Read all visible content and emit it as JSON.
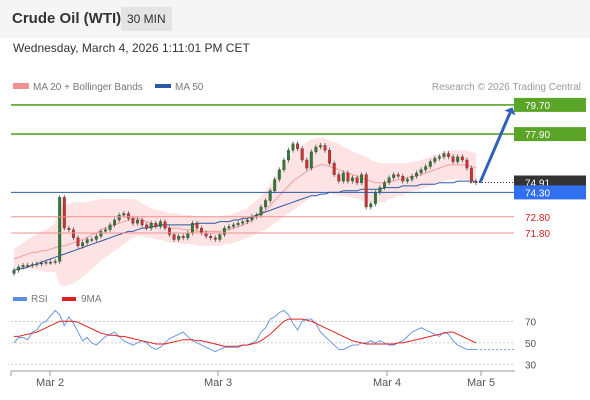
{
  "header": {
    "title": "Crude Oil (WTI)",
    "interval": "30 MIN",
    "datetime": "Wednesday, March 4, 2026 1:11:01 PM CET"
  },
  "legend": {
    "bollinger_label": "MA 20 + Bollinger Bands",
    "ma50_label": "MA 50",
    "credit": "Research © 2026 Trading Central"
  },
  "colors": {
    "resistance": "#5aa428",
    "support": "#f09090",
    "support_text": "#cc2222",
    "ma50": "#2b59a6",
    "pivot_box": "#2f6ff0",
    "current_box": "#333333",
    "bollinger_fill": "#fde3e3",
    "candle_up": "#2e7d32",
    "candle_down": "#d32f2f",
    "rsi": "#5b8fe0",
    "rsi_ma": "#e02020",
    "arrow": "#2d62b8"
  },
  "chart_data": [
    {
      "type": "candlestick",
      "title": "Crude Oil (WTI)",
      "interval": "30 MIN",
      "x_ticks": [
        "Mar 2",
        "Mar 3",
        "Mar 4",
        "Mar 5"
      ],
      "ylim": [
        68.9,
        80.0
      ],
      "levels": [
        {
          "value": 79.7,
          "label": "79.70",
          "role": "resistance"
        },
        {
          "value": 77.9,
          "label": "77.90",
          "role": "resistance"
        },
        {
          "value": 74.91,
          "label": "74.91",
          "role": "current"
        },
        {
          "value": 74.3,
          "label": "74.30",
          "role": "pivot"
        },
        {
          "value": 72.8,
          "label": "72.80",
          "role": "support"
        },
        {
          "value": 71.8,
          "label": "71.80",
          "role": "support"
        }
      ],
      "close": [
        69.5,
        69.7,
        69.8,
        69.8,
        69.85,
        69.9,
        69.95,
        70.0,
        70.0,
        70.05,
        74.0,
        72.1,
        72.0,
        71.5,
        71.0,
        71.2,
        71.4,
        71.4,
        71.6,
        71.9,
        72.0,
        72.3,
        72.6,
        72.9,
        73.0,
        72.7,
        72.4,
        72.6,
        72.3,
        72.1,
        72.4,
        72.2,
        72.5,
        72.1,
        71.7,
        71.4,
        71.6,
        71.5,
        71.8,
        72.4,
        72.1,
        71.8,
        71.6,
        71.5,
        71.4,
        71.7,
        72.1,
        72.2,
        72.3,
        72.4,
        72.5,
        72.6,
        72.8,
        72.9,
        73.4,
        73.8,
        74.4,
        75.1,
        75.7,
        76.3,
        76.9,
        77.3,
        77.0,
        76.3,
        75.8,
        76.8,
        77.1,
        77.2,
        76.9,
        76.1,
        75.4,
        75.0,
        75.5,
        75.0,
        75.2,
        74.9,
        75.4,
        73.4,
        73.6,
        74.3,
        74.6,
        74.9,
        75.2,
        75.4,
        75.3,
        75.0,
        75.1,
        75.3,
        75.5,
        75.7,
        75.9,
        76.2,
        76.4,
        76.5,
        76.7,
        76.5,
        76.2,
        76.5,
        76.3,
        75.8,
        75.0,
        74.9
      ],
      "ma20": [
        70.2,
        70.3,
        70.4,
        70.5,
        70.6,
        70.6,
        70.7,
        70.7,
        70.8,
        70.9,
        71.0,
        71.0,
        71.1,
        71.2,
        71.3,
        71.4,
        71.5,
        71.7,
        71.8,
        72.0,
        72.1,
        72.2,
        72.3,
        72.4,
        72.5,
        72.6,
        72.7,
        72.7,
        72.6,
        72.5,
        72.4,
        72.3,
        72.3,
        72.2,
        72.1,
        72.1,
        72.1,
        72.0,
        72.0,
        72.0,
        71.9,
        71.9,
        71.9,
        71.9,
        71.9,
        71.9,
        72.0,
        72.0,
        72.1,
        72.2,
        72.3,
        72.4,
        72.6,
        72.8,
        73.0,
        73.2,
        73.5,
        73.8,
        74.1,
        74.4,
        74.7,
        75.0,
        75.2,
        75.4,
        75.6,
        75.8,
        75.9,
        76.0,
        76.0,
        75.9,
        75.8,
        75.7,
        75.6,
        75.5,
        75.4,
        75.3,
        75.2,
        75.1,
        75.0,
        74.9,
        74.9,
        74.9,
        75.0,
        75.0,
        75.1,
        75.1,
        75.2,
        75.3,
        75.3,
        75.4,
        75.5,
        75.6,
        75.7,
        75.8,
        75.9,
        76.0,
        76.0,
        76.0,
        76.0,
        76.0,
        75.9,
        75.8
      ],
      "ma50": [
        69.5,
        69.6,
        69.6,
        69.7,
        69.8,
        69.9,
        70.0,
        70.1,
        70.2,
        70.3,
        70.4,
        70.5,
        70.6,
        70.7,
        70.8,
        70.9,
        71.0,
        71.1,
        71.2,
        71.3,
        71.4,
        71.5,
        71.6,
        71.7,
        71.8,
        71.9,
        71.9,
        72.0,
        72.1,
        72.1,
        72.2,
        72.2,
        72.3,
        72.3,
        72.3,
        72.3,
        72.3,
        72.3,
        72.3,
        72.3,
        72.4,
        72.4,
        72.4,
        72.4,
        72.4,
        72.5,
        72.5,
        72.5,
        72.6,
        72.6,
        72.7,
        72.7,
        72.8,
        72.9,
        73.0,
        73.1,
        73.2,
        73.3,
        73.4,
        73.5,
        73.6,
        73.7,
        73.8,
        73.9,
        74.0,
        74.1,
        74.1,
        74.2,
        74.2,
        74.3,
        74.3,
        74.3,
        74.4,
        74.4,
        74.4,
        74.4,
        74.5,
        74.5,
        74.5,
        74.5,
        74.5,
        74.6,
        74.6,
        74.6,
        74.6,
        74.7,
        74.7,
        74.7,
        74.7,
        74.8,
        74.8,
        74.8,
        74.8,
        74.9,
        74.9,
        74.9,
        74.9,
        75.0,
        75.0,
        75.0,
        75.0,
        75.0
      ],
      "bollinger_width": [
        0.6,
        0.7,
        0.8,
        0.9,
        1.0,
        1.1,
        1.2,
        1.3,
        1.4,
        1.5,
        2.4,
        2.5,
        2.5,
        2.5,
        2.4,
        2.3,
        2.2,
        2.1,
        2.0,
        1.9,
        1.8,
        1.7,
        1.6,
        1.5,
        1.4,
        1.3,
        1.2,
        1.1,
        1.0,
        1.0,
        0.9,
        0.9,
        0.9,
        0.9,
        0.9,
        0.9,
        0.9,
        0.9,
        0.9,
        0.9,
        0.9,
        0.9,
        0.9,
        0.9,
        0.9,
        0.9,
        0.9,
        0.9,
        0.9,
        0.9,
        0.9,
        0.9,
        1.0,
        1.0,
        1.1,
        1.2,
        1.3,
        1.4,
        1.5,
        1.6,
        1.7,
        1.8,
        1.8,
        1.8,
        1.8,
        1.8,
        1.7,
        1.7,
        1.6,
        1.6,
        1.6,
        1.6,
        1.5,
        1.5,
        1.4,
        1.4,
        1.4,
        1.4,
        1.3,
        1.3,
        1.2,
        1.2,
        1.1,
        1.1,
        1.0,
        1.0,
        0.9,
        0.9,
        0.9,
        0.9,
        0.9,
        0.9,
        0.9,
        0.9,
        0.9,
        0.9,
        0.9,
        0.9,
        0.9,
        0.9,
        0.9,
        0.9
      ],
      "projection": {
        "from": 74.9,
        "to": 79.7
      }
    },
    {
      "type": "line",
      "title": "RSI",
      "series": [
        {
          "name": "RSI",
          "values": [
            50,
            55,
            55,
            53,
            60,
            62,
            68,
            70,
            75,
            80,
            76,
            66,
            74,
            68,
            60,
            52,
            55,
            50,
            48,
            52,
            56,
            58,
            60,
            56,
            52,
            50,
            48,
            50,
            52,
            50,
            46,
            44,
            46,
            50,
            54,
            56,
            58,
            60,
            56,
            52,
            50,
            48,
            46,
            44,
            42,
            44,
            46,
            46,
            46,
            46,
            48,
            48,
            50,
            52,
            60,
            64,
            72,
            74,
            78,
            80,
            76,
            68,
            62,
            70,
            72,
            72,
            68,
            60,
            56,
            52,
            48,
            44,
            44,
            46,
            48,
            48,
            50,
            50,
            52,
            50,
            52,
            50,
            48,
            48,
            50,
            52,
            56,
            60,
            62,
            64,
            62,
            60,
            58,
            56,
            60,
            58,
            52,
            48,
            46,
            44,
            44,
            44
          ]
        },
        {
          "name": "9MA",
          "values": [
            56,
            56,
            57,
            58,
            59,
            60,
            62,
            64,
            66,
            68,
            70,
            70,
            70,
            70,
            69,
            67,
            65,
            63,
            61,
            59,
            58,
            57,
            57,
            56,
            56,
            55,
            54,
            53,
            52,
            51,
            50,
            49,
            49,
            49,
            50,
            51,
            52,
            53,
            53,
            53,
            52,
            52,
            51,
            50,
            49,
            48,
            47,
            47,
            47,
            47,
            48,
            48,
            49,
            50,
            52,
            55,
            58,
            62,
            66,
            70,
            72,
            72,
            72,
            72,
            71,
            70,
            68,
            66,
            64,
            62,
            60,
            58,
            56,
            54,
            52,
            51,
            50,
            49,
            49,
            49,
            49,
            49,
            49,
            49,
            50,
            50,
            51,
            52,
            53,
            54,
            55,
            56,
            57,
            58,
            59,
            60,
            60,
            58,
            56,
            54,
            52,
            50
          ]
        }
      ],
      "ylim": [
        25,
        85
      ],
      "y_ticks": [
        "70",
        "50",
        "30"
      ]
    }
  ]
}
